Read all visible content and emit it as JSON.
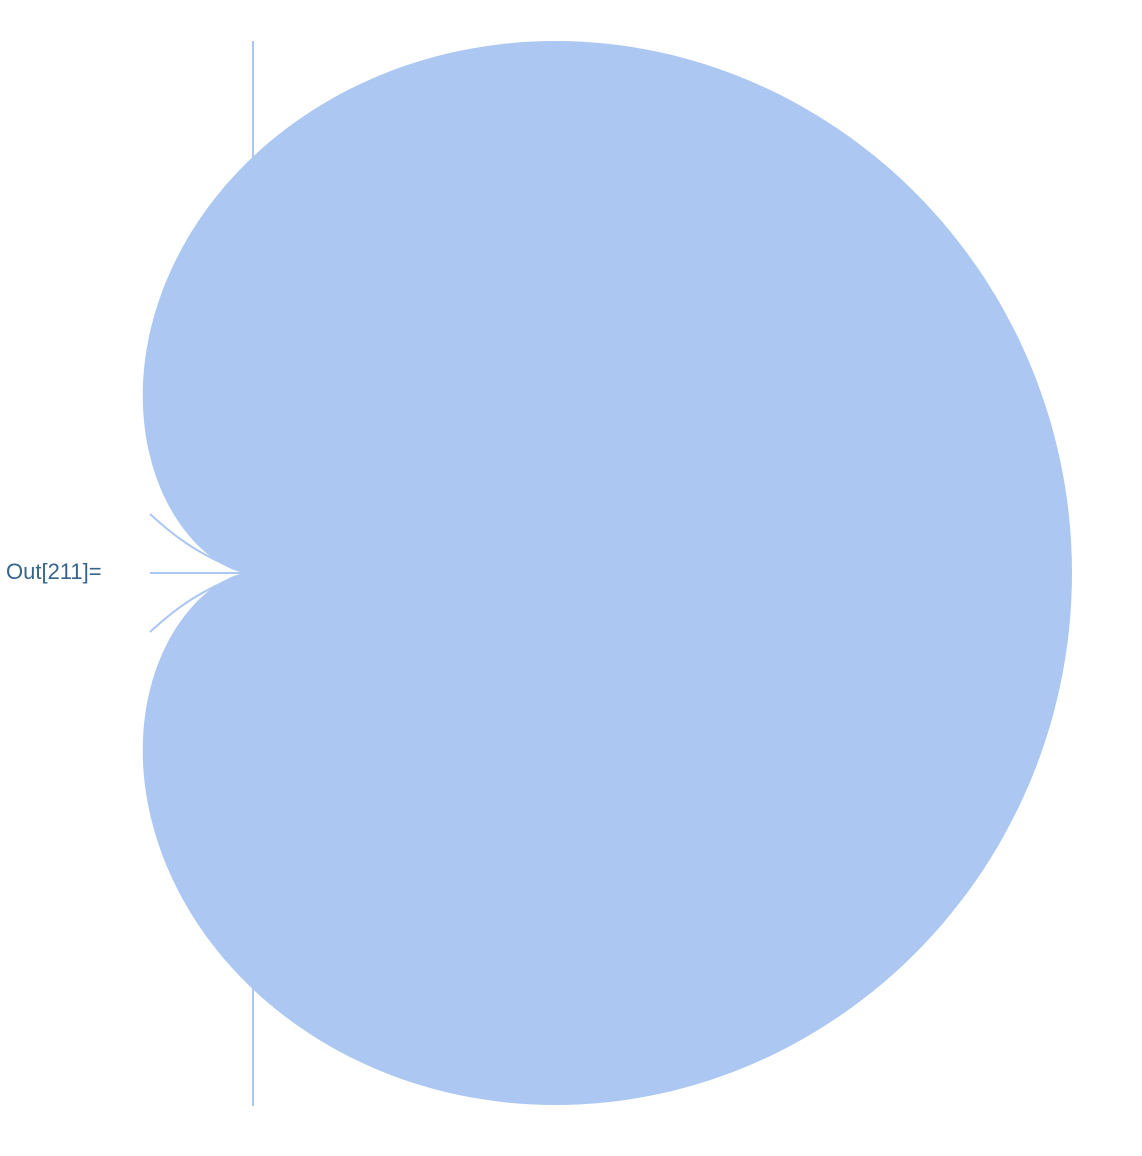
{
  "cell": {
    "output_label": "Out[211]="
  },
  "graphic": {
    "description_kind": "cardioid-shaped filled region",
    "fill_color": "#abc7f2",
    "line_color": "#abc7f2"
  }
}
